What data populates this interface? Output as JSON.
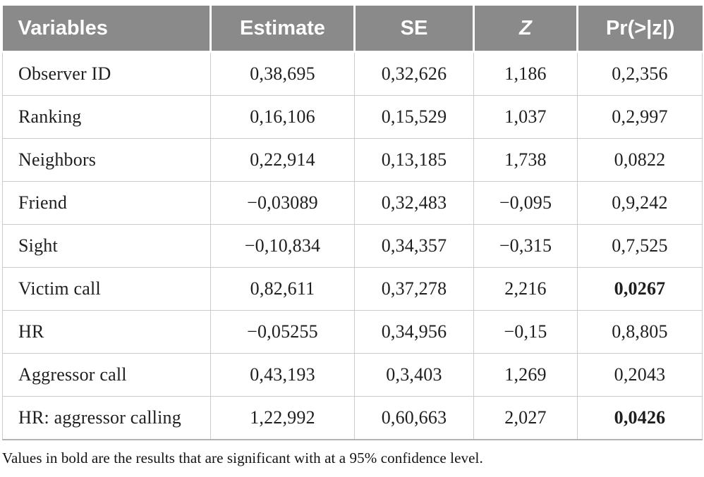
{
  "table": {
    "columns": [
      {
        "label": "Variables",
        "align": "left",
        "italic": false
      },
      {
        "label": "Estimate",
        "align": "center",
        "italic": false
      },
      {
        "label": "SE",
        "align": "center",
        "italic": false
      },
      {
        "label": "Z",
        "align": "center",
        "italic": true
      },
      {
        "label": "Pr(>|z|)",
        "align": "center",
        "italic": false
      }
    ],
    "rows": [
      {
        "variable": "Observer ID",
        "estimate": "0,38,695",
        "se": "0,32,626",
        "z": "1,186",
        "p": "0,2,356",
        "significant": false
      },
      {
        "variable": "Ranking",
        "estimate": "0,16,106",
        "se": "0,15,529",
        "z": "1,037",
        "p": "0,2,997",
        "significant": false
      },
      {
        "variable": "Neighbors",
        "estimate": "0,22,914",
        "se": "0,13,185",
        "z": "1,738",
        "p": "0,0822",
        "significant": false
      },
      {
        "variable": "Friend",
        "estimate": "−0,03089",
        "se": "0,32,483",
        "z": "−0,095",
        "p": "0,9,242",
        "significant": false
      },
      {
        "variable": "Sight",
        "estimate": "−0,10,834",
        "se": "0,34,357",
        "z": "−0,315",
        "p": "0,7,525",
        "significant": false
      },
      {
        "variable": "Victim call",
        "estimate": "0,82,611",
        "se": "0,37,278",
        "z": "2,216",
        "p": "0,0267",
        "significant": true
      },
      {
        "variable": "HR",
        "estimate": "−0,05255",
        "se": "0,34,956",
        "z": "−0,15",
        "p": "0,8,805",
        "significant": false
      },
      {
        "variable": "Aggressor call",
        "estimate": "0,43,193",
        "se": "0,3,403",
        "z": "1,269",
        "p": "0,2043",
        "significant": false
      },
      {
        "variable": "HR: aggressor calling",
        "estimate": "1,22,992",
        "se": "0,60,663",
        "z": "2,027",
        "p": "0,0426",
        "significant": true
      }
    ]
  },
  "footnote": "Values in bold are the results that are significant with at a 95% confidence level.",
  "colors": {
    "header_bg": "#8a8a8a",
    "header_text": "#ffffff",
    "body_border": "#cbcbcb",
    "outer_bottom_border": "#b3b3b3",
    "body_text": "#1e1e1e"
  }
}
